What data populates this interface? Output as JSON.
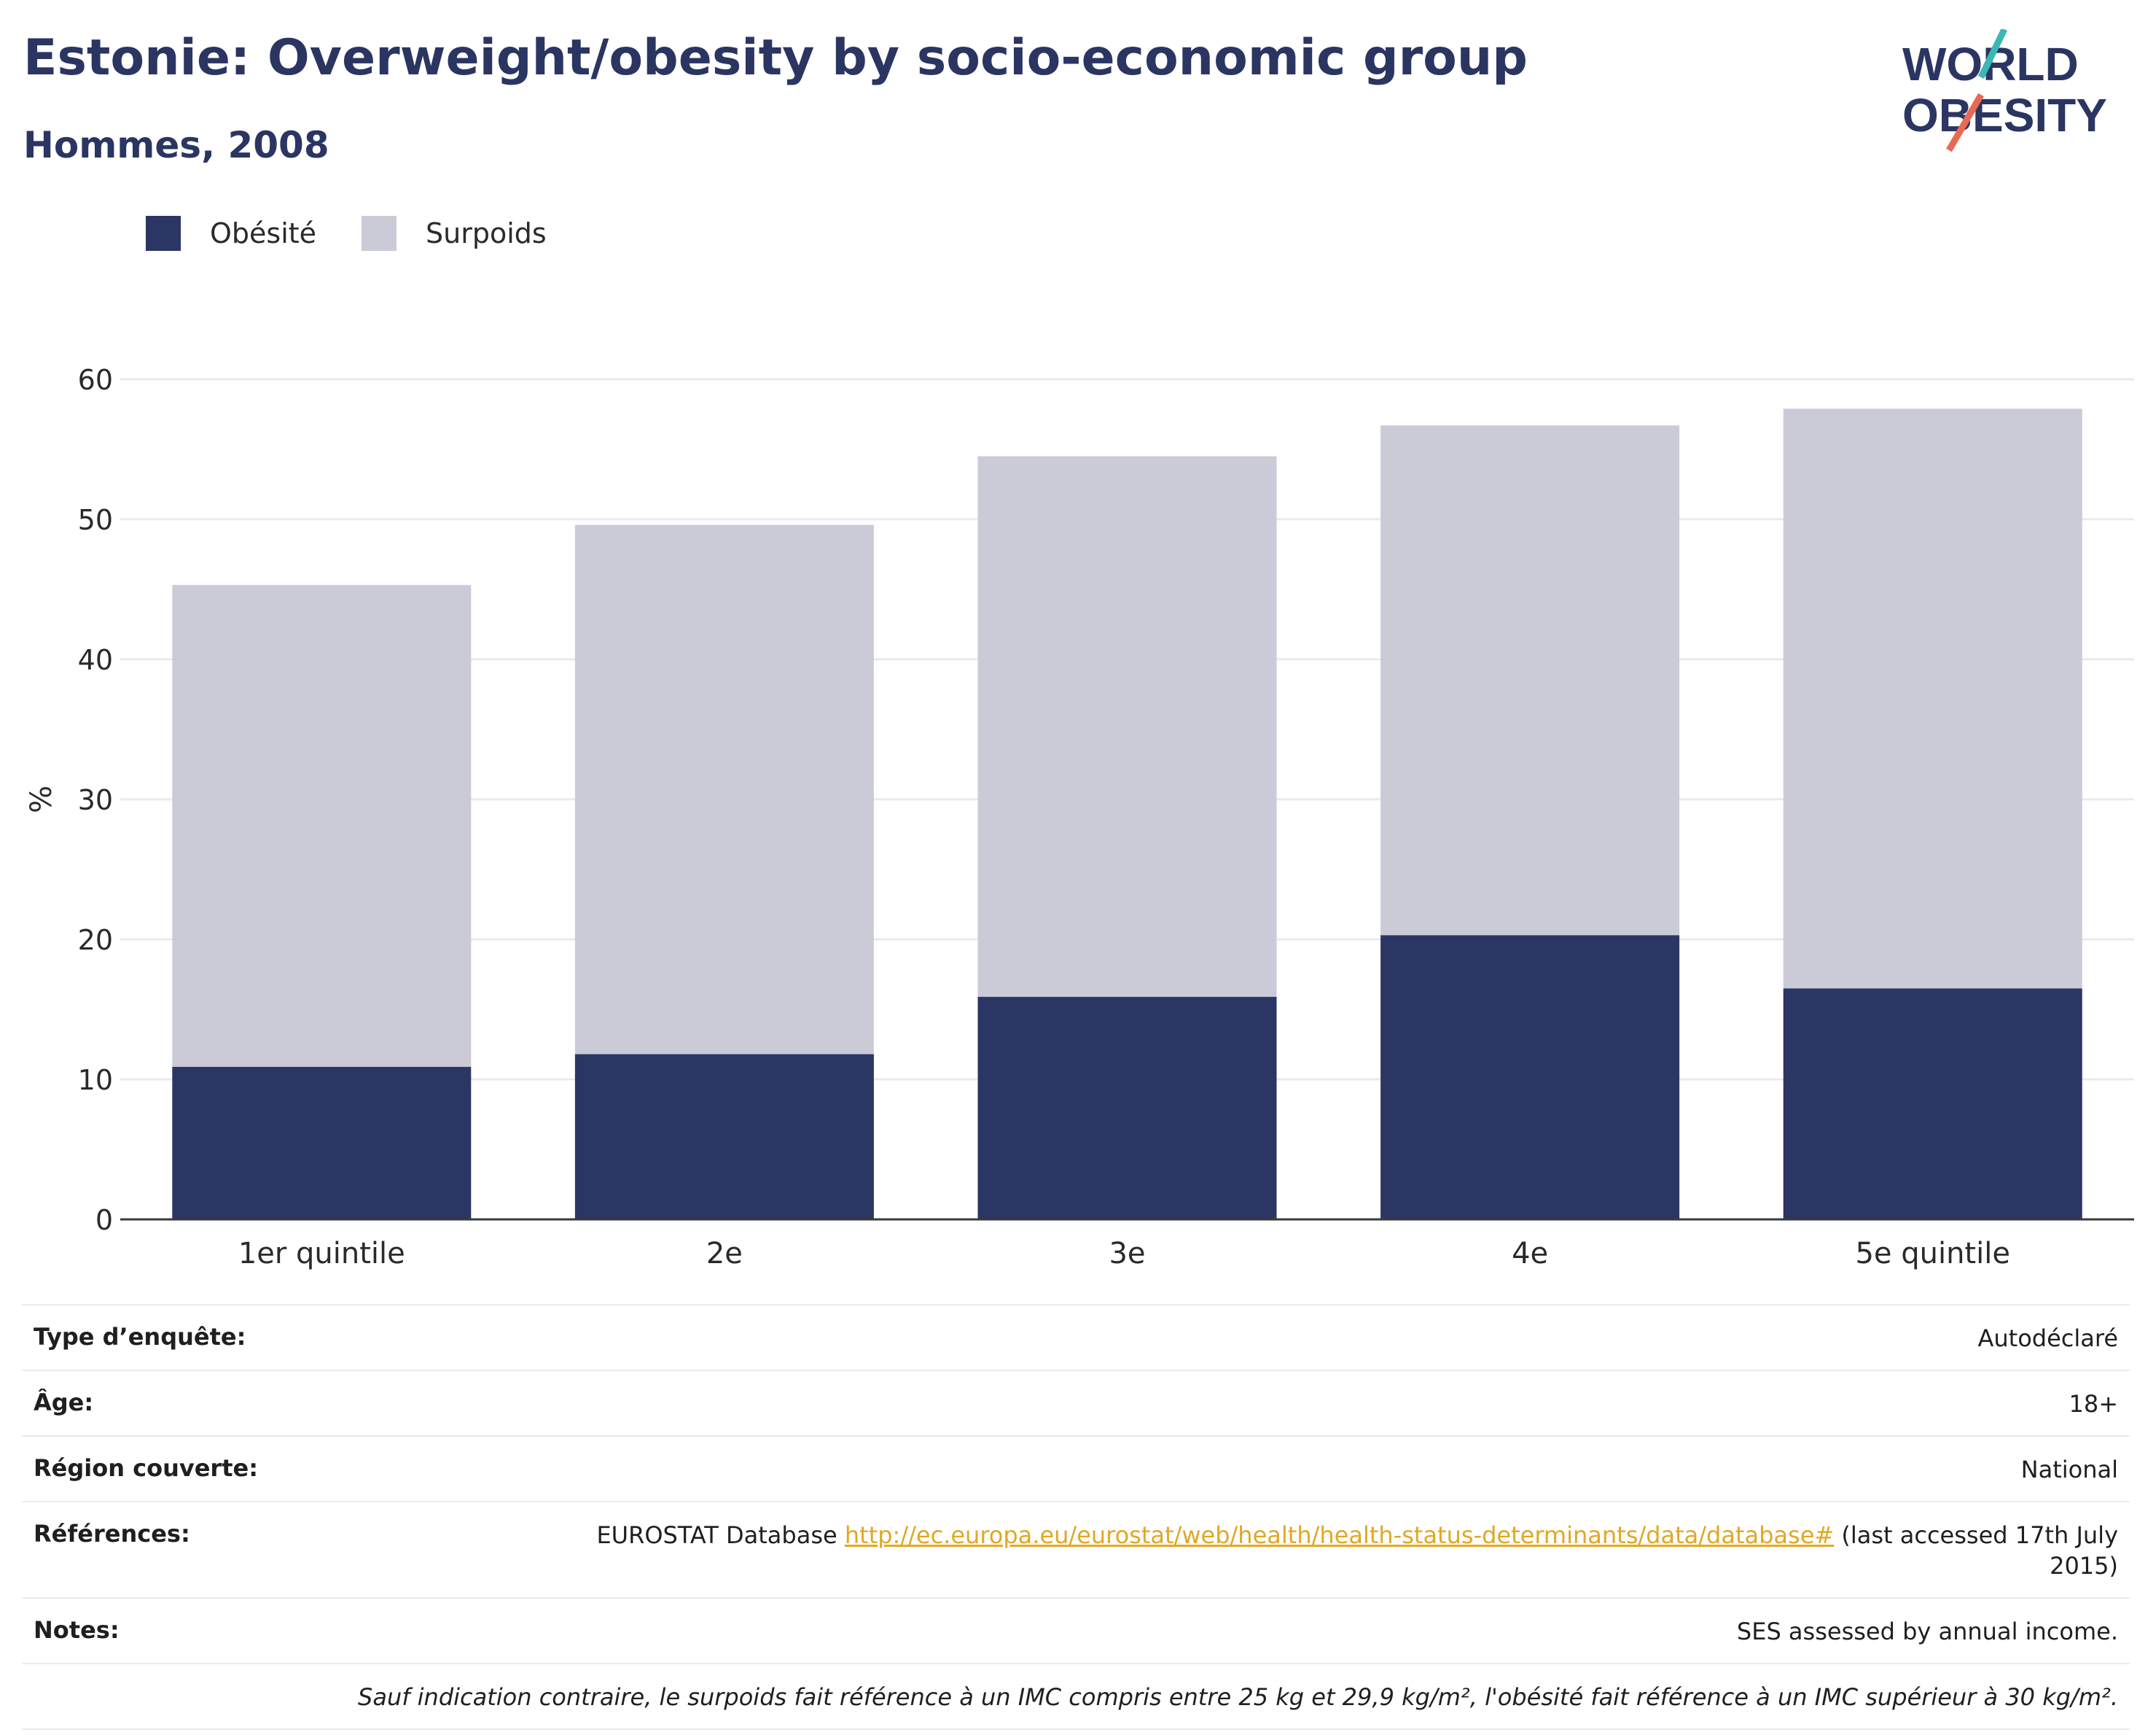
{
  "header": {
    "title": "Estonie: Overweight/obesity by socio-economic group",
    "subtitle": "Hommes, 2008"
  },
  "logo": {
    "line1": "WORLD",
    "line2": "OBESITY",
    "teal": "#3bb8b4",
    "coral": "#e86a55",
    "navy": "#2b3562"
  },
  "chart_data": {
    "type": "bar",
    "stacked": true,
    "categories": [
      "1er quintile",
      "2e",
      "3e",
      "4e",
      "5e quintile"
    ],
    "series": [
      {
        "name": "Obésité",
        "color": "#2b3664",
        "values": [
          10.9,
          11.8,
          15.9,
          20.3,
          16.5
        ]
      },
      {
        "name": "Surpoids",
        "color": "#cacbd7",
        "values": [
          34.4,
          37.8,
          38.6,
          36.4,
          41.4
        ]
      }
    ],
    "ylabel": "%",
    "ylim": [
      0,
      60
    ],
    "yticks": [
      0,
      10,
      20,
      30,
      40,
      50,
      60
    ],
    "grid": true,
    "legend_position": "top-left"
  },
  "meta": {
    "survey_label": "Type d’enquête:",
    "survey_value": "Autodéclaré",
    "age_label": "Âge:",
    "age_value": "18+",
    "region_label": "Région couverte:",
    "region_value": "National",
    "refs_label": "Références:",
    "refs_prefix": "EUROSTAT Database",
    "refs_link": "http://ec.europa.eu/eurostat/web/health/health-status-determinants/data/database#",
    "refs_suffix": "(last accessed 17th July 2015)",
    "notes_label": "Notes:",
    "notes_value": "SES assessed by annual income.",
    "footnote": "Sauf indication contraire, le surpoids fait référence à un IMC compris entre 25 kg et 29,9 kg/m², l'obésité fait référence à un IMC supérieur à 30 kg/m²."
  }
}
